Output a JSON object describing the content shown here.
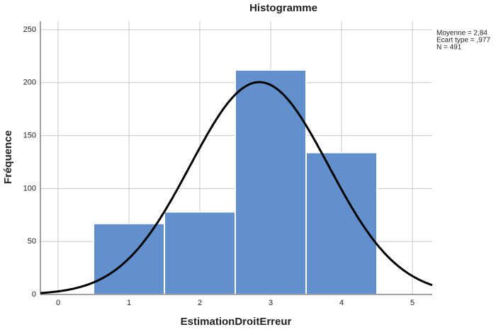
{
  "chart_data": {
    "type": "histogram",
    "title": "Histogramme",
    "x_label": "EstimationDroitErreur",
    "y_label": "Fréquence",
    "bins": [
      0.5,
      1.5,
      2.5,
      3.5,
      4.5
    ],
    "values": [
      67,
      78,
      212,
      134
    ],
    "color": "#6190cd",
    "xlim": [
      -0.25,
      5.28
    ],
    "xticks": [
      0,
      1,
      2,
      3,
      4,
      5
    ],
    "ylim": [
      0,
      258
    ],
    "yticks": [
      0,
      50,
      100,
      150,
      200,
      250
    ],
    "grid": true,
    "annotations": [
      "Moyenne = 2,84",
      "Ecart type = ,977",
      "N = 491"
    ],
    "normal_curve": {
      "mean": 2.84,
      "sd": 0.977,
      "n": 491
    }
  }
}
